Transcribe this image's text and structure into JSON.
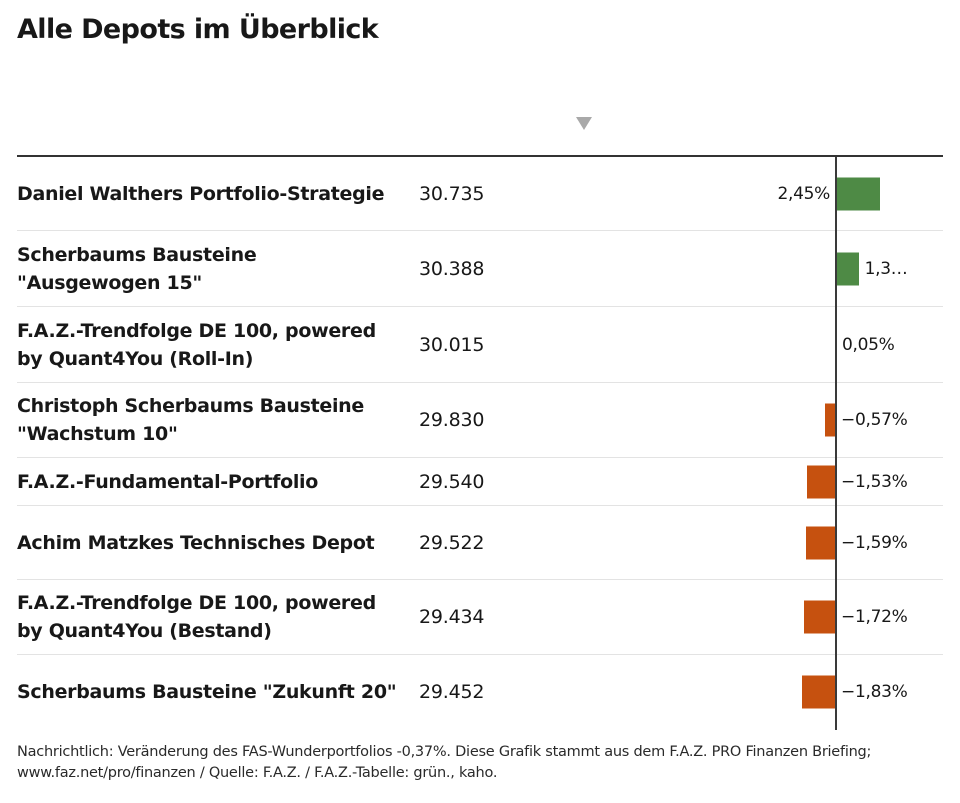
{
  "title": "Alle Depots im Überblick",
  "footnote": {
    "line1": "Nachrichtlich: Veränderung des FAS-Wunderportfolios -0,37%. Diese Grafik stammt aus dem F.A.Z. PRO Finanzen Briefing;",
    "line2": "www.faz.net/pro/finanzen / Quelle: F.A.Z. / F.A.Z.-Tabelle: grün., kaho."
  },
  "colors": {
    "positive": "#4e8a45",
    "negative": "#c6510f",
    "axis": "#3a3a3a"
  },
  "chart_data": {
    "type": "table",
    "sorted_column": "change",
    "rows": [
      {
        "name": "Daniel Walthers Portfolio-Strategie",
        "value": "30.735",
        "change": 2.45,
        "label": "2,45%"
      },
      {
        "name": "Scherbaums Bausteine \"Ausgewogen 15\"",
        "value": "30.388",
        "change": 1.3,
        "label": "1,3…"
      },
      {
        "name": "F.A.Z.-Trendfolge DE 100, powered by Quant4You (Roll-In)",
        "value": "30.015",
        "change": 0.05,
        "label": "0,05%"
      },
      {
        "name": "Christoph Scherbaums Bausteine \"Wachstum 10\"",
        "value": "29.830",
        "change": -0.57,
        "label": "−0,57%"
      },
      {
        "name": "F.A.Z.-Fundamental-Portfolio",
        "value": "29.540",
        "change": -1.53,
        "label": "−1,53%"
      },
      {
        "name": "Achim Matzkes Technisches Depot",
        "value": "29.522",
        "change": -1.59,
        "label": "−1,59%"
      },
      {
        "name": "F.A.Z.-Trendfolge DE 100, powered by Quant4You (Bestand)",
        "value": "29.434",
        "change": -1.72,
        "label": "−1,72%"
      },
      {
        "name": "Scherbaums Bausteine \"Zukunft 20\"",
        "value": "29.452",
        "change": -1.83,
        "label": "−1,83%"
      }
    ]
  }
}
